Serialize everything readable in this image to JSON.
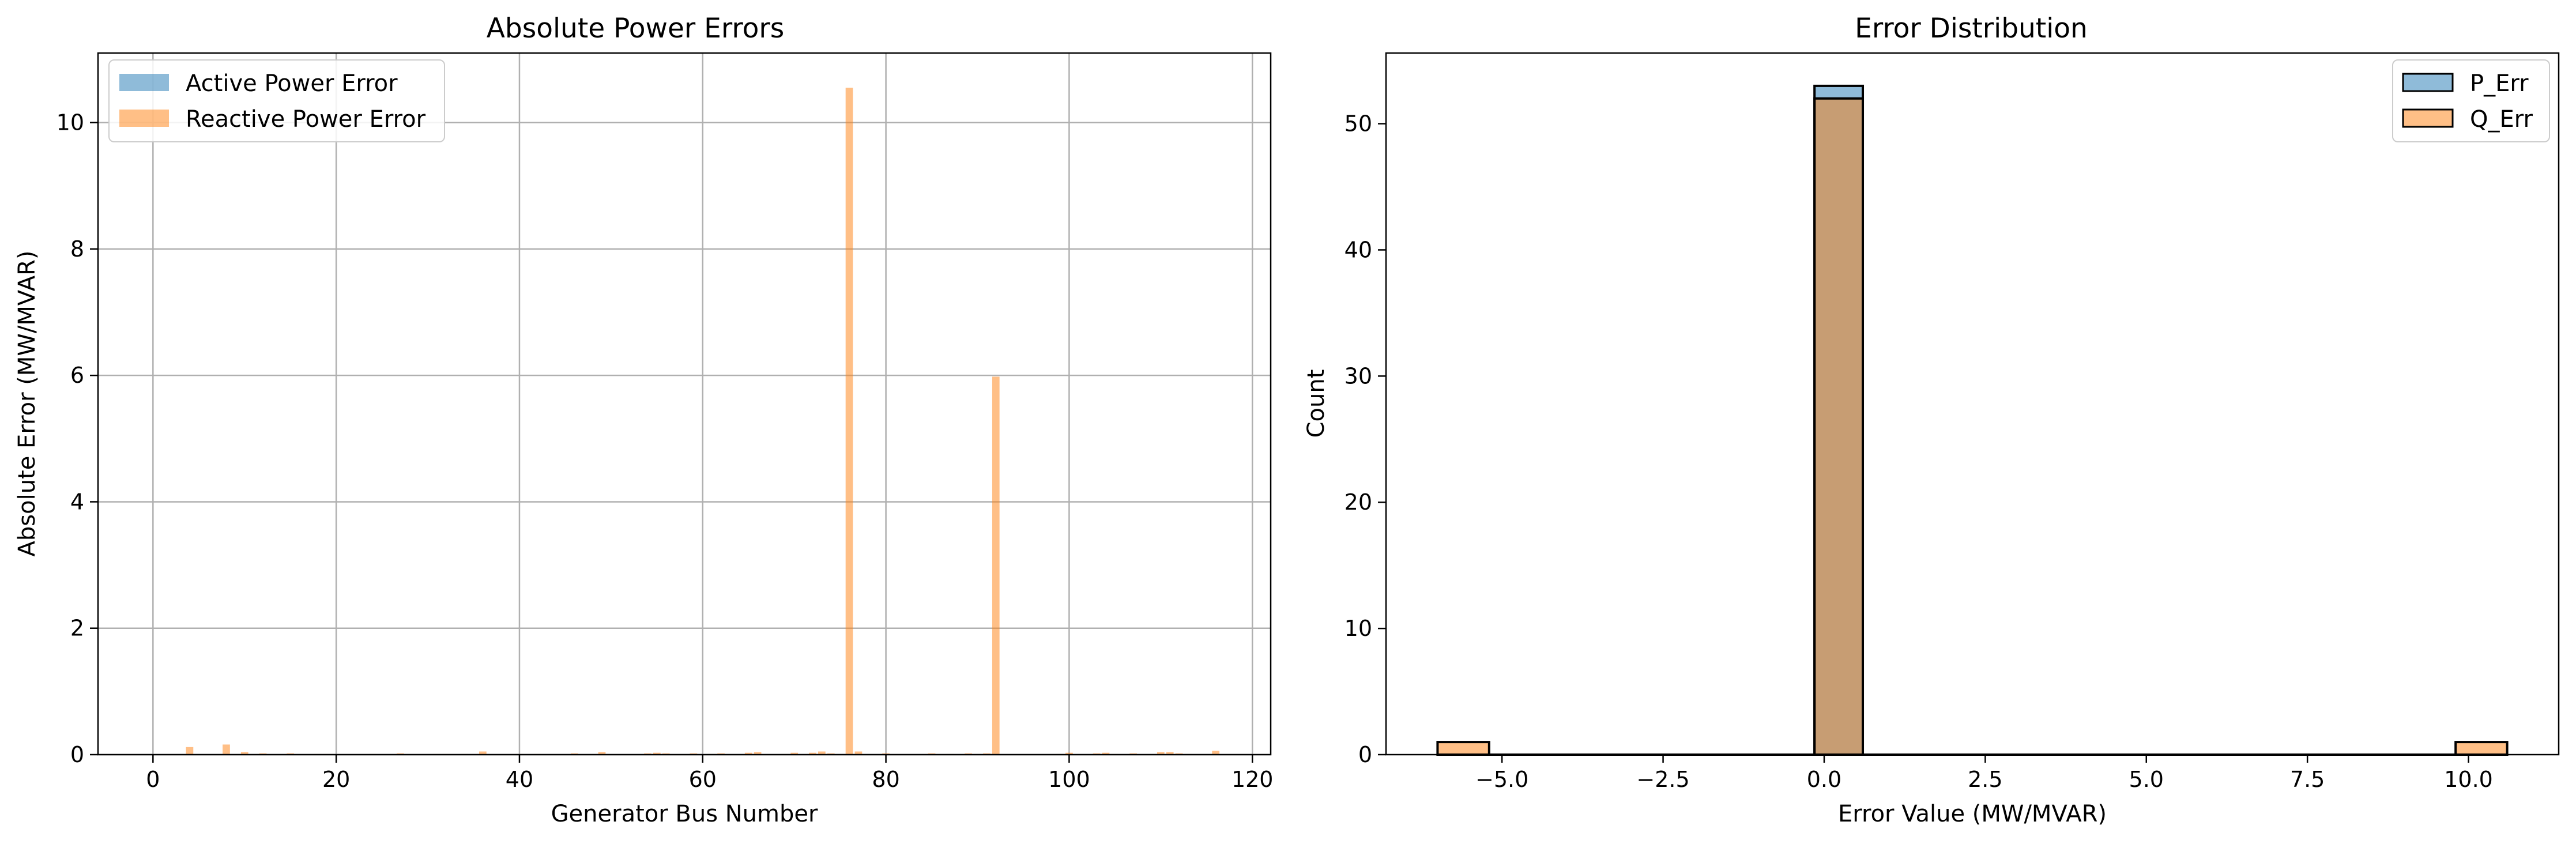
{
  "chart_data": [
    {
      "type": "bar",
      "title": "Absolute Power Errors",
      "xlabel": "Generator Bus Number",
      "ylabel": "Absolute Error (MW/MVAR)",
      "xlim": [
        -6,
        122
      ],
      "ylim": [
        0,
        11.1
      ],
      "xticks": [
        0,
        20,
        40,
        60,
        80,
        100,
        120
      ],
      "yticks": [
        0,
        2,
        4,
        6,
        8,
        10
      ],
      "grid": true,
      "legend": "top-left",
      "series": [
        {
          "name": "Active Power Error",
          "color": "#1f77b4",
          "x": [
            4,
            8,
            76,
            92
          ],
          "values": [
            0,
            0,
            0,
            0
          ]
        },
        {
          "name": "Reactive Power Error",
          "color": "#ff7f0e",
          "x": [
            4,
            8,
            10,
            12,
            15,
            18,
            19,
            24,
            27,
            31,
            32,
            34,
            36,
            40,
            42,
            46,
            49,
            54,
            55,
            56,
            59,
            61,
            62,
            65,
            66,
            69,
            70,
            72,
            73,
            74,
            76,
            77,
            80,
            85,
            87,
            89,
            90,
            91,
            92,
            99,
            100,
            103,
            104,
            105,
            107,
            110,
            111,
            112,
            113,
            116
          ],
          "values": [
            0.12,
            0.16,
            0.04,
            0.02,
            0.02,
            0.01,
            0.01,
            0.01,
            0.02,
            0.01,
            0.01,
            0.01,
            0.05,
            0.01,
            0.01,
            0.02,
            0.04,
            0.02,
            0.03,
            0.02,
            0.02,
            0.01,
            0.02,
            0.03,
            0.04,
            0.01,
            0.03,
            0.03,
            0.05,
            0.02,
            10.55,
            0.05,
            0.02,
            0.02,
            0.01,
            0.02,
            0.01,
            0.02,
            5.98,
            0.01,
            0.03,
            0.02,
            0.03,
            0.01,
            0.02,
            0.04,
            0.04,
            0.02,
            0.01,
            0.06
          ]
        }
      ]
    },
    {
      "type": "histogram",
      "title": "Error Distribution",
      "xlabel": "Error Value (MW/MVAR)",
      "ylabel": "Count",
      "xlim": [
        -6.8,
        11.4
      ],
      "ylim": [
        0,
        55.6
      ],
      "xticks": [
        -5.0,
        -2.5,
        0.0,
        2.5,
        5.0,
        7.5,
        10.0
      ],
      "xtick_labels": [
        "−5.0",
        "−2.5",
        "0.0",
        "2.5",
        "5.0",
        "7.5",
        "10.0"
      ],
      "yticks": [
        0,
        10,
        20,
        30,
        40,
        50
      ],
      "grid": false,
      "legend": "top-right",
      "series": [
        {
          "name": "P_Err",
          "color": "#1f77b4",
          "bins": [
            [
              -0.15,
              0.6,
              53
            ]
          ]
        },
        {
          "name": "Q_Err",
          "color": "#ff7f0e",
          "bins": [
            [
              -6.0,
              -5.2,
              1
            ],
            [
              -0.15,
              0.6,
              52
            ],
            [
              9.8,
              10.6,
              1
            ]
          ]
        }
      ]
    }
  ]
}
